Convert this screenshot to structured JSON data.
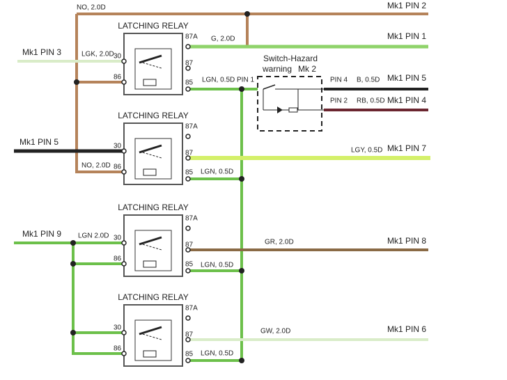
{
  "labels": {
    "top_no": "NO, 2.0D",
    "mk1_pin2": "Mk1 PIN 2",
    "g_wire": "G, 2.0D",
    "mk1_pin1": "Mk1 PIN 1",
    "mk1_pin3": "Mk1 PIN 3",
    "lgk_wire": "LGK, 2.0D",
    "lgn_r1": "LGN, 0.5D",
    "pin1": "PIN 1",
    "switch_title": "Switch-Hazard",
    "switch_warning": "warning",
    "switch_mk": "Mk 2",
    "pin4": "PIN 4",
    "b_wire": "B, 0.5D",
    "mk1_pin5_right": "Mk1 PIN 5",
    "pin2": "PIN 2",
    "rb_wire": "RB, 0.5D",
    "mk1_pin4": "Mk1 PIN 4",
    "mk1_pin5_left": "Mk1 PIN 5",
    "lgy_wire": "LGY, 0.5D",
    "mk1_pin7": "Mk1 PIN 7",
    "no_r2": "NO, 2.0D",
    "lgn_r2": "LGN, 0.5D",
    "mk1_pin9": "Mk1 PIN 9",
    "lgn_r3_in": "LGN 2.0D",
    "gr_wire": "GR, 2.0D",
    "mk1_pin8": "Mk1 PIN 8",
    "lgn_r3": "LGN, 0.5D",
    "gw_wire": "GW, 2.0D",
    "mk1_pin6": "Mk1 PIN 6",
    "lgn_r4": "LGN, 0.5D"
  },
  "relays": [
    {
      "title": "LATCHING RELAY",
      "t87a": "87A",
      "t30": "30",
      "t87": "87",
      "t86": "86",
      "t85": "85"
    },
    {
      "title": "LATCHING RELAY",
      "t87a": "87A",
      "t30": "30",
      "t87": "87",
      "t86": "86",
      "t85": "85"
    },
    {
      "title": "LATCHING RELAY",
      "t87a": "87A",
      "t30": "30",
      "t87": "87",
      "t86": "86",
      "t85": "85"
    },
    {
      "title": "LATCHING RELAY",
      "t87a": "87A",
      "t30": "30",
      "t87": "87",
      "t86": "86",
      "t85": "85"
    }
  ]
}
